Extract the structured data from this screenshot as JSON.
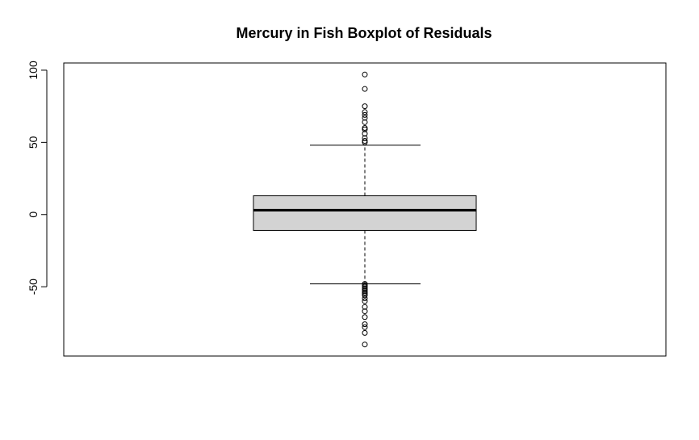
{
  "chart_data": {
    "type": "boxplot",
    "title": "Mercury in Fish Boxplot of Residuals",
    "xlabel": "",
    "ylabel": "",
    "ylim": [
      -98,
      105
    ],
    "yticks": [
      -50,
      0,
      50,
      100
    ],
    "ytick_labels": [
      "-50",
      "0",
      "50",
      "100"
    ],
    "grid": false,
    "box": {
      "whisker_low": -48,
      "q1": -11,
      "median": 3,
      "q3": 13,
      "whisker_high": 48
    },
    "outliers": [
      97,
      87,
      75,
      71,
      69,
      67,
      64,
      60,
      59,
      56,
      53,
      51,
      50,
      -48,
      -49,
      -50,
      -51,
      -52,
      -53,
      -54,
      -55,
      -56,
      -58,
      -60,
      -64,
      -67,
      -71,
      -76,
      -78,
      -82,
      -90
    ],
    "colors": {
      "box_fill": "#d3d3d3",
      "stroke": "#000000",
      "background": "#ffffff"
    }
  }
}
